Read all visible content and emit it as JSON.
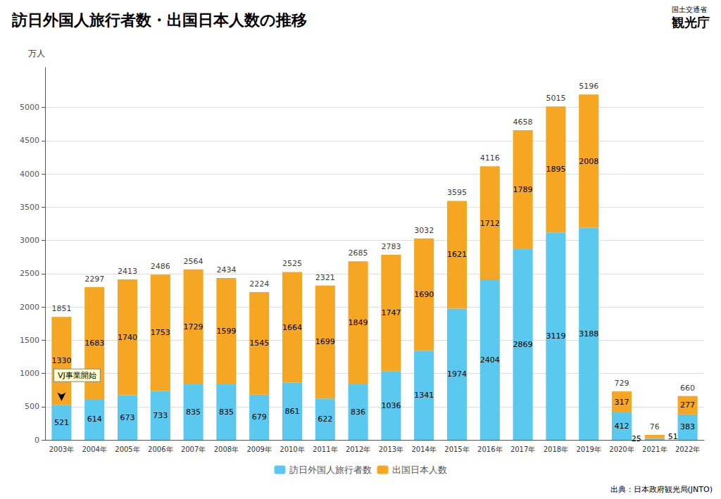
{
  "chart_data": {
    "type": "bar",
    "title": "訪日外国人旅行者数・出国日本人数の推移",
    "y_label": "万人",
    "source": "出典：日本政府観光局(JNTO)",
    "logo_text": [
      "国土交通省",
      "観光庁"
    ],
    "categories": [
      "2003年",
      "2004年",
      "2005年",
      "2006年",
      "2007年",
      "2008年",
      "2009年",
      "2010年",
      "2011年",
      "2012年",
      "2013年",
      "2014年",
      "2015年",
      "2016年",
      "2017年",
      "2018年",
      "2019年",
      "2020年",
      "2021年",
      "2022年"
    ],
    "series": [
      {
        "name": "訪日外国人旅行者数",
        "color": "#5BC8F0",
        "values": [
          521,
          614,
          673,
          733,
          835,
          835,
          679,
          861,
          622,
          836,
          1036,
          1341,
          1974,
          2404,
          2869,
          3119,
          3188,
          412,
          25,
          383
        ]
      },
      {
        "name": "出国日本人数",
        "color": "#F5A623",
        "values": [
          1330,
          1683,
          1740,
          1753,
          1729,
          1599,
          1545,
          1664,
          1699,
          1849,
          1747,
          1690,
          1621,
          1712,
          1789,
          1895,
          2008,
          317,
          51,
          277
        ]
      }
    ],
    "totals": [
      1851,
      2297,
      2413,
      2486,
      2564,
      2434,
      2224,
      2525,
      2321,
      2685,
      2783,
      3032,
      3595,
      4116,
      4658,
      5015,
      5196,
      729,
      76,
      660
    ],
    "stacked": true,
    "data_labels": true,
    "ylim": [
      0,
      5600
    ],
    "yticks": [
      0,
      500,
      1000,
      1500,
      2000,
      2500,
      3000,
      3500,
      4000,
      4500,
      5000
    ],
    "grid": true,
    "legend": "bottom",
    "annotations": [
      {
        "text": "VJ事業開始",
        "category": "2003年",
        "value": 521
      }
    ]
  }
}
